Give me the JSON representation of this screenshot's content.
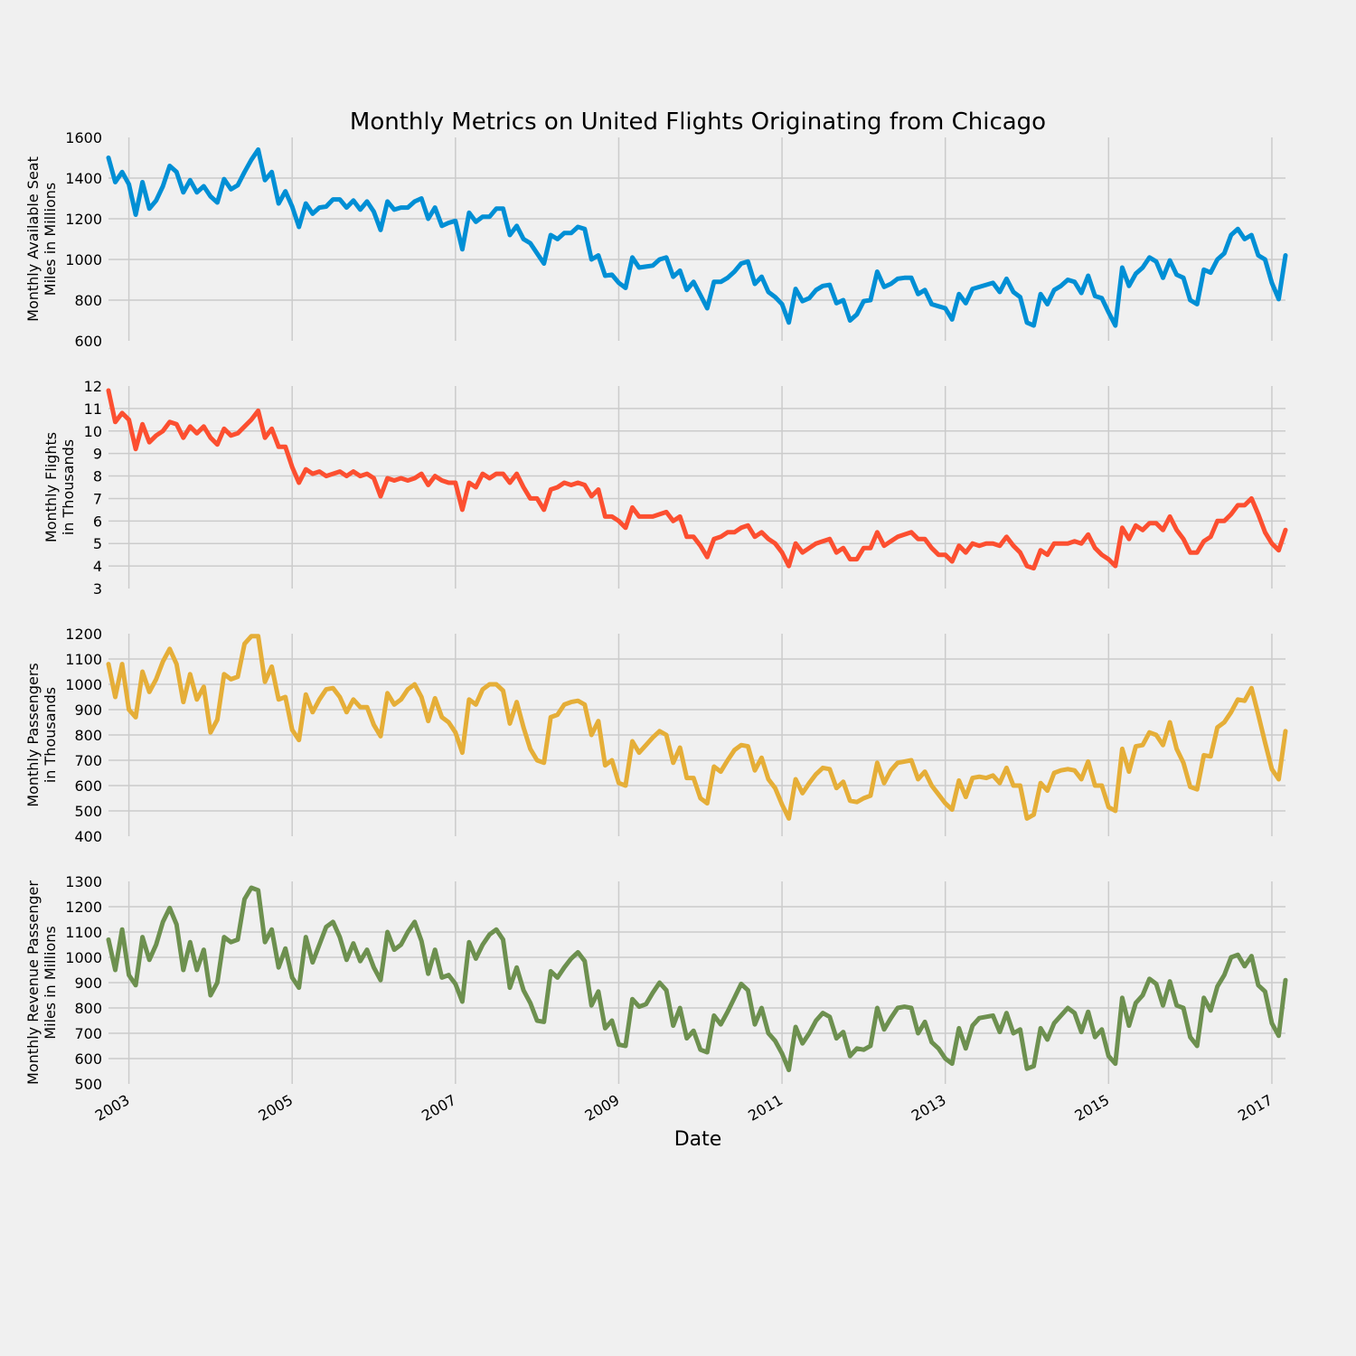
{
  "chart_data": {
    "type": "line",
    "title": "Monthly Metrics on United Flights Originating from Chicago",
    "xlabel": "Date",
    "x_ticks": [
      "2003",
      "2005",
      "2007",
      "2009",
      "2011",
      "2013",
      "2015",
      "2017"
    ],
    "x_start": "2002-10",
    "x_end": "2017-03",
    "grid": true,
    "legend": "none",
    "panels": [
      {
        "name": "Monthly Available Seat Miles in Millions",
        "ylabel": [
          "Monthly Available Seat",
          "Miles in Millions"
        ],
        "ylim": [
          600,
          1600
        ],
        "yticks": [
          "600",
          "800",
          "1000",
          "1200",
          "1400",
          "1600"
        ],
        "color": "#008fd5",
        "values": [
          1500,
          1380,
          1430,
          1370,
          1220,
          1380,
          1250,
          1290,
          1360,
          1460,
          1430,
          1330,
          1390,
          1330,
          1360,
          1310,
          1280,
          1395,
          1345,
          1365,
          1430,
          1490,
          1540,
          1390,
          1430,
          1275,
          1335,
          1260,
          1160,
          1275,
          1225,
          1255,
          1260,
          1295,
          1295,
          1255,
          1290,
          1245,
          1285,
          1235,
          1145,
          1285,
          1245,
          1255,
          1255,
          1285,
          1300,
          1200,
          1255,
          1165,
          1180,
          1190,
          1050,
          1230,
          1185,
          1210,
          1210,
          1250,
          1250,
          1120,
          1165,
          1100,
          1080,
          1030,
          980,
          1120,
          1100,
          1130,
          1130,
          1160,
          1150,
          1000,
          1020,
          920,
          925,
          885,
          860,
          1010,
          960,
          965,
          970,
          1000,
          1010,
          915,
          945,
          850,
          890,
          825,
          760,
          890,
          890,
          910,
          940,
          980,
          990,
          880,
          915,
          840,
          815,
          780,
          690,
          855,
          795,
          810,
          850,
          870,
          875,
          785,
          800,
          700,
          730,
          795,
          800,
          940,
          865,
          880,
          905,
          910,
          910,
          830,
          850,
          780,
          770,
          760,
          705,
          830,
          785,
          855,
          865,
          875,
          885,
          840,
          905,
          840,
          815,
          690,
          675,
          830,
          780,
          850,
          870,
          900,
          890,
          835,
          920,
          820,
          810,
          740,
          675,
          960,
          870,
          930,
          960,
          1010,
          990,
          910,
          995,
          925,
          910,
          800,
          780,
          950,
          935,
          1000,
          1030,
          1120,
          1150,
          1100,
          1120,
          1020,
          1000,
          885,
          805,
          1020
        ]
      },
      {
        "name": "Monthly Flights in Thousands",
        "ylabel": [
          "Monthly Flights",
          "in Thousands"
        ],
        "ylim": [
          3,
          12
        ],
        "yticks": [
          "3",
          "4",
          "5",
          "6",
          "7",
          "8",
          "9",
          "10",
          "11",
          "12"
        ],
        "color": "#fc4f30",
        "values": [
          11.8,
          10.4,
          10.8,
          10.5,
          9.2,
          10.3,
          9.5,
          9.8,
          10.0,
          10.4,
          10.3,
          9.7,
          10.2,
          9.9,
          10.2,
          9.7,
          9.4,
          10.1,
          9.8,
          9.9,
          10.2,
          10.5,
          10.9,
          9.7,
          10.1,
          9.3,
          9.3,
          8.4,
          7.7,
          8.3,
          8.1,
          8.2,
          8.0,
          8.1,
          8.2,
          8.0,
          8.2,
          8.0,
          8.1,
          7.9,
          7.1,
          7.9,
          7.8,
          7.9,
          7.8,
          7.9,
          8.1,
          7.6,
          8.0,
          7.8,
          7.7,
          7.7,
          6.5,
          7.7,
          7.5,
          8.1,
          7.9,
          8.1,
          8.1,
          7.7,
          8.1,
          7.5,
          7.0,
          7.0,
          6.5,
          7.4,
          7.5,
          7.7,
          7.6,
          7.7,
          7.6,
          7.1,
          7.4,
          6.2,
          6.2,
          6.0,
          5.7,
          6.6,
          6.2,
          6.2,
          6.2,
          6.3,
          6.4,
          6.0,
          6.2,
          5.3,
          5.3,
          4.9,
          4.4,
          5.2,
          5.3,
          5.5,
          5.5,
          5.7,
          5.8,
          5.3,
          5.5,
          5.2,
          5.0,
          4.6,
          4.0,
          5.0,
          4.6,
          4.8,
          5.0,
          5.1,
          5.2,
          4.6,
          4.8,
          4.3,
          4.3,
          4.8,
          4.8,
          5.5,
          4.9,
          5.1,
          5.3,
          5.4,
          5.5,
          5.2,
          5.2,
          4.8,
          4.5,
          4.5,
          4.2,
          4.9,
          4.6,
          5.0,
          4.9,
          5.0,
          5.0,
          4.9,
          5.3,
          4.9,
          4.6,
          4.0,
          3.9,
          4.7,
          4.5,
          5.0,
          5.0,
          5.0,
          5.1,
          5.0,
          5.4,
          4.8,
          4.5,
          4.3,
          4.0,
          5.7,
          5.2,
          5.8,
          5.6,
          5.9,
          5.9,
          5.6,
          6.2,
          5.6,
          5.2,
          4.6,
          4.6,
          5.1,
          5.3,
          6.0,
          6.0,
          6.3,
          6.7,
          6.7,
          7.0,
          6.3,
          5.5,
          5.0,
          4.7,
          5.6
        ]
      },
      {
        "name": "Monthly Passengers in Thousands",
        "ylabel": [
          "Monthly Passengers",
          "in Thousands"
        ],
        "ylim": [
          400,
          1200
        ],
        "yticks": [
          "400",
          "500",
          "600",
          "700",
          "800",
          "900",
          "1000",
          "1100",
          "1200"
        ],
        "color": "#e5ae38",
        "values": [
          1080,
          950,
          1080,
          900,
          870,
          1050,
          970,
          1020,
          1090,
          1140,
          1080,
          930,
          1040,
          940,
          990,
          810,
          860,
          1040,
          1020,
          1030,
          1160,
          1190,
          1190,
          1010,
          1070,
          940,
          950,
          820,
          780,
          960,
          890,
          940,
          980,
          985,
          950,
          890,
          940,
          910,
          910,
          840,
          795,
          965,
          920,
          940,
          980,
          1000,
          950,
          855,
          945,
          870,
          850,
          810,
          730,
          940,
          920,
          980,
          1000,
          1000,
          975,
          845,
          930,
          830,
          745,
          700,
          690,
          870,
          880,
          920,
          930,
          935,
          920,
          800,
          855,
          680,
          700,
          610,
          600,
          775,
          730,
          760,
          790,
          815,
          800,
          690,
          750,
          630,
          630,
          550,
          530,
          675,
          655,
          700,
          740,
          760,
          755,
          660,
          710,
          625,
          590,
          525,
          470,
          625,
          570,
          610,
          645,
          670,
          665,
          590,
          615,
          540,
          535,
          550,
          560,
          690,
          610,
          660,
          690,
          695,
          700,
          625,
          655,
          600,
          565,
          530,
          505,
          620,
          555,
          630,
          635,
          630,
          640,
          610,
          670,
          600,
          600,
          470,
          485,
          610,
          580,
          650,
          660,
          665,
          660,
          625,
          695,
          600,
          600,
          515,
          500,
          745,
          655,
          755,
          760,
          810,
          800,
          760,
          850,
          745,
          690,
          595,
          585,
          720,
          715,
          830,
          850,
          890,
          940,
          935,
          985,
          880,
          770,
          665,
          625,
          815
        ]
      },
      {
        "name": "Monthly Revenue Passenger Miles in Millions",
        "ylabel": [
          "Monthly Revenue Passenger",
          "Miles in Millions"
        ],
        "ylim": [
          500,
          1300
        ],
        "yticks": [
          "500",
          "600",
          "700",
          "800",
          "900",
          "1000",
          "1100",
          "1200",
          "1300"
        ],
        "color": "#6d904f",
        "values": [
          1070,
          950,
          1110,
          930,
          890,
          1080,
          990,
          1050,
          1140,
          1195,
          1130,
          950,
          1060,
          950,
          1030,
          850,
          900,
          1080,
          1060,
          1070,
          1230,
          1275,
          1265,
          1060,
          1110,
          960,
          1035,
          920,
          880,
          1080,
          980,
          1050,
          1120,
          1140,
          1080,
          990,
          1055,
          985,
          1030,
          960,
          910,
          1100,
          1030,
          1050,
          1100,
          1140,
          1065,
          935,
          1030,
          920,
          930,
          895,
          825,
          1060,
          995,
          1050,
          1090,
          1110,
          1070,
          880,
          960,
          870,
          820,
          750,
          745,
          945,
          920,
          960,
          995,
          1020,
          985,
          810,
          865,
          720,
          750,
          655,
          650,
          835,
          805,
          815,
          860,
          900,
          870,
          730,
          800,
          680,
          710,
          635,
          625,
          770,
          735,
          785,
          840,
          895,
          870,
          735,
          800,
          700,
          670,
          620,
          555,
          725,
          660,
          700,
          750,
          780,
          765,
          680,
          705,
          610,
          640,
          635,
          650,
          800,
          715,
          760,
          800,
          805,
          800,
          700,
          745,
          665,
          640,
          600,
          580,
          720,
          640,
          730,
          760,
          765,
          770,
          705,
          780,
          700,
          715,
          560,
          570,
          720,
          675,
          740,
          770,
          800,
          780,
          705,
          785,
          685,
          715,
          610,
          580,
          840,
          730,
          820,
          850,
          915,
          895,
          810,
          905,
          810,
          800,
          685,
          650,
          840,
          790,
          885,
          930,
          1000,
          1010,
          965,
          1005,
          890,
          865,
          740,
          690,
          910
        ]
      }
    ]
  }
}
